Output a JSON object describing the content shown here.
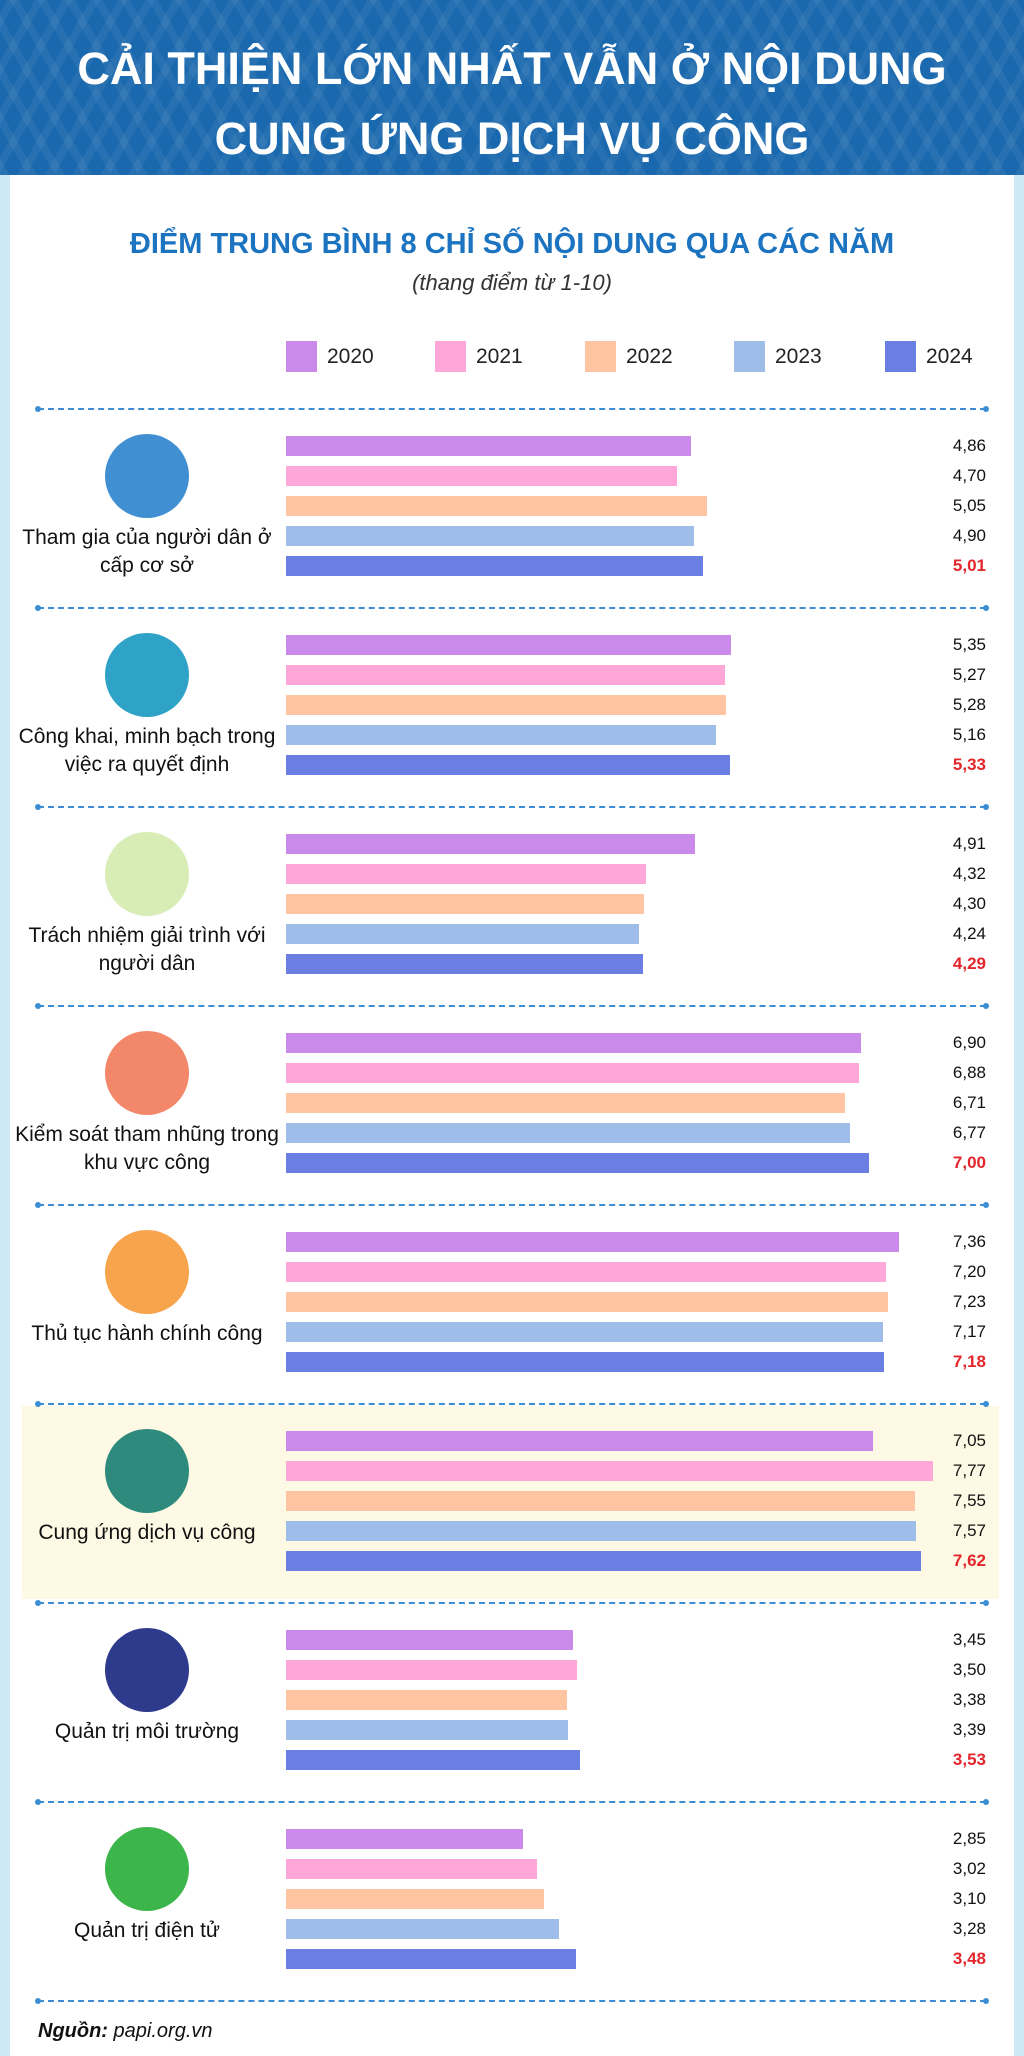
{
  "header": {
    "title": "CẢI THIỆN LỚN NHẤT VẪN Ở NỘI DUNG CUNG ỨNG DỊCH VỤ CÔNG"
  },
  "chart_data": {
    "type": "hbar-group",
    "title": "ĐIỂM TRUNG BÌNH 8 CHỈ SỐ NỘI DUNG QUA CÁC NĂM",
    "subtitle": "(thang điểm từ 1-10)",
    "categories": [
      "Tham gia của người dân ở cấp cơ sở",
      "Công khai, minh bạch trong việc ra quyết định",
      "Trách nhiệm giải trình với người dân",
      "Kiểm soát tham nhũng trong khu vực công",
      "Thủ tục hành chính công",
      "Cung ứng dịch vụ công",
      "Quản trị môi trường",
      "Quản trị điện tử"
    ],
    "icon_colors": [
      "#3f8fd2",
      "#2ea3c7",
      "#d8ecb6",
      "#f2876a",
      "#f7a44d",
      "#2d8a7c",
      "#2e3a8c",
      "#3cb54a"
    ],
    "highlight_index": 5,
    "series": [
      {
        "name": "2020",
        "color": "#c98ae9",
        "values": [
          4.86,
          5.35,
          4.91,
          6.9,
          7.36,
          7.05,
          3.45,
          2.85
        ],
        "value_labels": [
          "4,86",
          "5,35",
          "4,91",
          "6,90",
          "7,36",
          "7,05",
          "3,45",
          "2,85"
        ]
      },
      {
        "name": "2021",
        "color": "#ffa7d8",
        "values": [
          4.7,
          5.27,
          4.32,
          6.88,
          7.2,
          7.77,
          3.5,
          3.02
        ],
        "value_labels": [
          "4,70",
          "5,27",
          "4,32",
          "6,88",
          "7,20",
          "7,77",
          "3,50",
          "3,02"
        ]
      },
      {
        "name": "2022",
        "color": "#ffc5a2",
        "values": [
          5.05,
          5.28,
          4.3,
          6.71,
          7.23,
          7.55,
          3.38,
          3.1
        ],
        "value_labels": [
          "5,05",
          "5,28",
          "4,30",
          "6,71",
          "7,23",
          "7,55",
          "3,38",
          "3,10"
        ]
      },
      {
        "name": "2023",
        "color": "#9ebde8",
        "values": [
          4.9,
          5.16,
          4.24,
          6.77,
          7.17,
          7.57,
          3.39,
          3.28
        ],
        "value_labels": [
          "4,90",
          "5,16",
          "4,24",
          "6,77",
          "7,17",
          "7,57",
          "3,39",
          "3,28"
        ]
      },
      {
        "name": "2024",
        "color": "#6b7fe2",
        "label_color": "#e3262b",
        "values": [
          5.01,
          5.33,
          4.29,
          7.0,
          7.18,
          7.62,
          3.53,
          3.48
        ],
        "value_labels": [
          "5,01",
          "5,33",
          "4,29",
          "7,00",
          "7,18",
          "7,62",
          "3,53",
          "3,48"
        ]
      }
    ]
  },
  "source": {
    "label": "Nguồn:",
    "text": "papi.org.vn"
  }
}
